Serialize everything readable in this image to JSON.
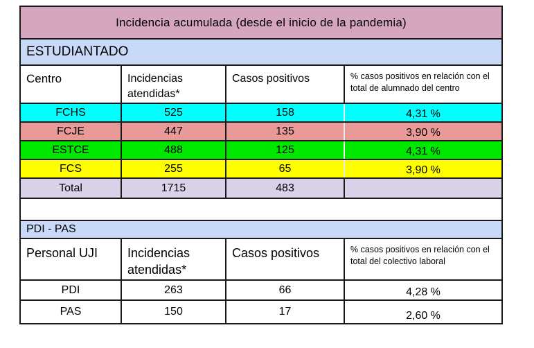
{
  "title": "Incidencia acumulada (desde el inicio de la pandemia)",
  "colors": {
    "title_bar": "#d5a6bd",
    "section_bar": "#c9daf8",
    "row_fchs": "#00ffff",
    "row_fcje": "#ea9999",
    "row_estce": "#00e800",
    "row_fcs": "#ffff00",
    "row_total": "#d9d2e9",
    "border": "#1a1a1a"
  },
  "estudiantado": {
    "section_label": "ESTUDIANTADO",
    "headers": {
      "col1": "Centro",
      "col2": "Incidencias atendidas*",
      "col3": "Casos positivos",
      "col4": "% casos positivos en relación con el total de alumnado del centro"
    },
    "rows": [
      {
        "label": "FCHS",
        "incidencias": "525",
        "casos": "158",
        "pct": "4,31 %",
        "color": "#00ffff"
      },
      {
        "label": "FCJE",
        "incidencias": "447",
        "casos": "135",
        "pct": "3,90 %",
        "color": "#ea9999"
      },
      {
        "label": "ESTCE",
        "incidencias": "488",
        "casos": "125",
        "pct": "4,31 %",
        "color": "#00e800"
      },
      {
        "label": "FCS",
        "incidencias": "255",
        "casos": "65",
        "pct": "3,90 %",
        "color": "#ffff00"
      }
    ],
    "total": {
      "label": "Total",
      "incidencias": "1715",
      "casos": "483",
      "pct": "",
      "color": "#d9d2e9"
    }
  },
  "pdi_pas": {
    "section_label": "PDI - PAS",
    "headers": {
      "col1": "Personal UJI",
      "col2": "Incidencias atendidas*",
      "col3": "Casos positivos",
      "col4": "% casos positivos en relación con el total del colectivo laboral"
    },
    "rows": [
      {
        "label": "PDI",
        "incidencias": "263",
        "casos": "66",
        "pct": "4,28 %"
      },
      {
        "label": "PAS",
        "incidencias": "150",
        "casos": "17",
        "pct": "2,60 %"
      }
    ]
  }
}
